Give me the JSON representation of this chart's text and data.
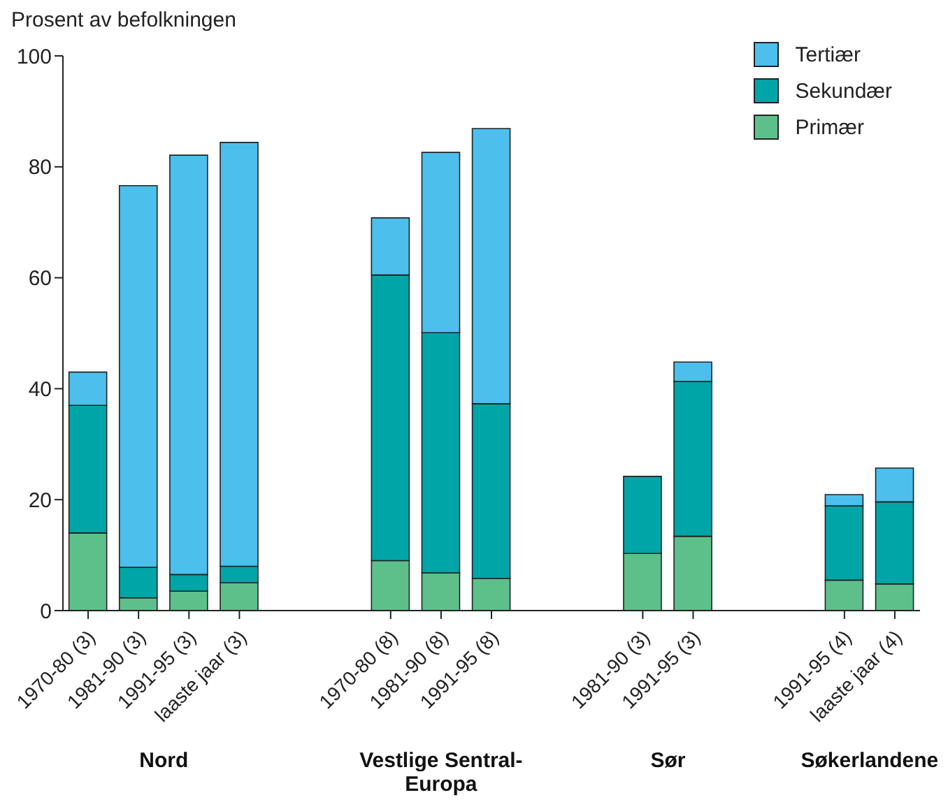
{
  "chart_data": {
    "type": "bar",
    "stacked": true,
    "ylabel": "Prosent av befolkningen",
    "categories": [
      "1970-80 (3)",
      "1981-90 (3)",
      "1991-95 (3)",
      "laaste jaar (3)",
      null,
      null,
      "1970-80 (8)",
      "1981-90 (8)",
      "1991-95 (8)",
      null,
      null,
      "1981-90 (3)",
      "1991-95 (3)",
      null,
      null,
      "1991-95 (4)",
      "laaste jaar (4)"
    ],
    "series": [
      {
        "name": "Primær",
        "color": "#5dc08b",
        "values": [
          14,
          2.3,
          3.5,
          5,
          null,
          null,
          9,
          6.8,
          5.8,
          null,
          null,
          10.3,
          13.4,
          null,
          null,
          5.5,
          4.8
        ]
      },
      {
        "name": "Sekundær",
        "color": "#00a5a8",
        "values": [
          23,
          5.5,
          3,
          3,
          null,
          null,
          51.5,
          43.3,
          31.5,
          null,
          null,
          13.9,
          27.9,
          null,
          null,
          13.4,
          14.8
        ]
      },
      {
        "name": "Tertiær",
        "color": "#4cbfed",
        "values": [
          6,
          68.8,
          75.6,
          76.4,
          null,
          null,
          10.3,
          32.5,
          49.6,
          null,
          null,
          null,
          3.5,
          null,
          null,
          2,
          6.1
        ]
      }
    ],
    "ylim": [
      0,
      100
    ],
    "yticks": [
      0,
      20,
      40,
      60,
      80,
      100
    ],
    "legend": "top right",
    "annotations": [
      "Nord",
      "Vestlige Sentral-Europa",
      "Sør",
      "Søkerlandene"
    ]
  }
}
